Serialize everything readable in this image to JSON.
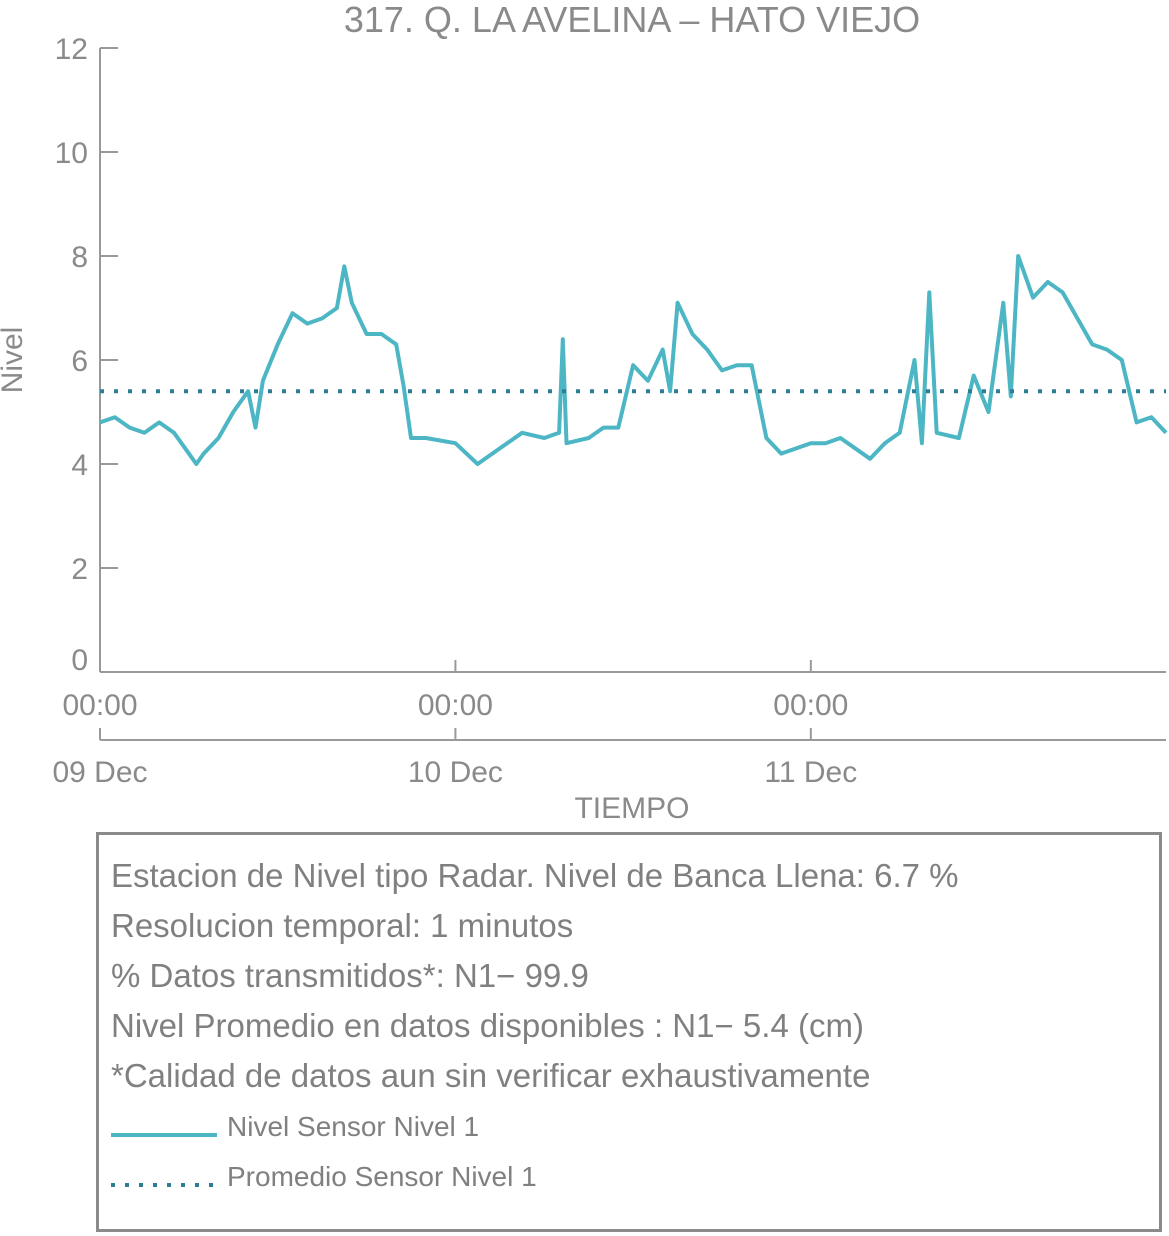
{
  "chart_data": {
    "type": "line",
    "title": "317. Q. LA AVELINA – HATO VIEJO",
    "xlabel": "TIEMPO",
    "ylabel": "Nivel",
    "ylim": [
      0,
      12
    ],
    "yticks": [
      0,
      2,
      4,
      6,
      8,
      10,
      12
    ],
    "xlim": [
      "2023-12-09T00:00",
      "2023-12-11T23:59"
    ],
    "xticks": [
      {
        "time": "00:00",
        "date": "09 Dec",
        "t": "2023-12-09T00:00"
      },
      {
        "time": "00:00",
        "date": "10 Dec",
        "t": "2023-12-10T00:00"
      },
      {
        "time": "00:00",
        "date": "11 Dec",
        "t": "2023-12-11T00:00"
      }
    ],
    "grid": false,
    "series": [
      {
        "name": "Nivel Sensor Nivel 1",
        "style": "solid",
        "color": "#4db6c4",
        "points": [
          [
            "2023-12-09T00:00",
            4.8
          ],
          [
            "2023-12-09T01:00",
            4.9
          ],
          [
            "2023-12-09T02:00",
            4.7
          ],
          [
            "2023-12-09T03:00",
            4.6
          ],
          [
            "2023-12-09T04:00",
            4.8
          ],
          [
            "2023-12-09T05:00",
            4.6
          ],
          [
            "2023-12-09T06:00",
            4.2
          ],
          [
            "2023-12-09T06:30",
            4.0
          ],
          [
            "2023-12-09T07:00",
            4.2
          ],
          [
            "2023-12-09T08:00",
            4.5
          ],
          [
            "2023-12-09T09:00",
            5.0
          ],
          [
            "2023-12-09T10:00",
            5.4
          ],
          [
            "2023-12-09T10:30",
            4.7
          ],
          [
            "2023-12-09T11:00",
            5.6
          ],
          [
            "2023-12-09T12:00",
            6.3
          ],
          [
            "2023-12-09T13:00",
            6.9
          ],
          [
            "2023-12-09T14:00",
            6.7
          ],
          [
            "2023-12-09T15:00",
            6.8
          ],
          [
            "2023-12-09T16:00",
            7.0
          ],
          [
            "2023-12-09T16:30",
            7.8
          ],
          [
            "2023-12-09T17:00",
            7.1
          ],
          [
            "2023-12-09T18:00",
            6.5
          ],
          [
            "2023-12-09T19:00",
            6.5
          ],
          [
            "2023-12-09T20:00",
            6.3
          ],
          [
            "2023-12-09T20:30",
            5.5
          ],
          [
            "2023-12-09T21:00",
            4.5
          ],
          [
            "2023-12-09T22:00",
            4.5
          ],
          [
            "2023-12-10T00:00",
            4.4
          ],
          [
            "2023-12-10T01:30",
            4.0
          ],
          [
            "2023-12-10T03:00",
            4.3
          ],
          [
            "2023-12-10T04:30",
            4.6
          ],
          [
            "2023-12-10T06:00",
            4.5
          ],
          [
            "2023-12-10T07:00",
            4.6
          ],
          [
            "2023-12-10T07:15",
            6.4
          ],
          [
            "2023-12-10T07:30",
            4.4
          ],
          [
            "2023-12-10T09:00",
            4.5
          ],
          [
            "2023-12-10T10:00",
            4.7
          ],
          [
            "2023-12-10T11:00",
            4.7
          ],
          [
            "2023-12-10T12:00",
            5.9
          ],
          [
            "2023-12-10T13:00",
            5.6
          ],
          [
            "2023-12-10T14:00",
            6.2
          ],
          [
            "2023-12-10T14:30",
            5.4
          ],
          [
            "2023-12-10T15:00",
            7.1
          ],
          [
            "2023-12-10T16:00",
            6.5
          ],
          [
            "2023-12-10T17:00",
            6.2
          ],
          [
            "2023-12-10T18:00",
            5.8
          ],
          [
            "2023-12-10T19:00",
            5.9
          ],
          [
            "2023-12-10T20:00",
            5.9
          ],
          [
            "2023-12-10T21:00",
            4.5
          ],
          [
            "2023-12-10T22:00",
            4.2
          ],
          [
            "2023-12-11T00:00",
            4.4
          ],
          [
            "2023-12-11T01:00",
            4.4
          ],
          [
            "2023-12-11T02:00",
            4.5
          ],
          [
            "2023-12-11T04:00",
            4.1
          ],
          [
            "2023-12-11T05:00",
            4.4
          ],
          [
            "2023-12-11T06:00",
            4.6
          ],
          [
            "2023-12-11T07:00",
            6.0
          ],
          [
            "2023-12-11T07:30",
            4.4
          ],
          [
            "2023-12-11T08:00",
            7.3
          ],
          [
            "2023-12-11T08:30",
            4.6
          ],
          [
            "2023-12-11T10:00",
            4.5
          ],
          [
            "2023-12-11T11:00",
            5.7
          ],
          [
            "2023-12-11T12:00",
            5.0
          ],
          [
            "2023-12-11T13:00",
            7.1
          ],
          [
            "2023-12-11T13:30",
            5.3
          ],
          [
            "2023-12-11T14:00",
            8.0
          ],
          [
            "2023-12-11T15:00",
            7.2
          ],
          [
            "2023-12-11T16:00",
            7.5
          ],
          [
            "2023-12-11T17:00",
            7.3
          ],
          [
            "2023-12-11T18:00",
            6.8
          ],
          [
            "2023-12-11T19:00",
            6.3
          ],
          [
            "2023-12-11T20:00",
            6.2
          ],
          [
            "2023-12-11T21:00",
            6.0
          ],
          [
            "2023-12-11T22:00",
            4.8
          ],
          [
            "2023-12-11T23:00",
            4.9
          ],
          [
            "2023-12-11T23:59",
            4.6
          ]
        ]
      },
      {
        "name": "Promedio Sensor Nivel 1",
        "style": "dotted",
        "color": "#2e7d96",
        "value": 5.4
      }
    ]
  },
  "info": {
    "lines": [
      "Estacion de Nivel tipo Radar. Nivel de Banca Llena:  6.7 %",
      "Resolucion temporal: 1 minutos",
      "% Datos transmitidos*: N1− 99.9",
      "Nivel Promedio en datos disponibles : N1−  5.4 (cm)",
      "*Calidad de datos aun sin verificar exhaustivamente"
    ],
    "legend": [
      {
        "label": "Nivel Sensor Nivel 1",
        "style": "solid",
        "color": "#4db6c4"
      },
      {
        "label": "Promedio Sensor Nivel 1",
        "style": "dotted",
        "color": "#2e7d96"
      }
    ]
  }
}
